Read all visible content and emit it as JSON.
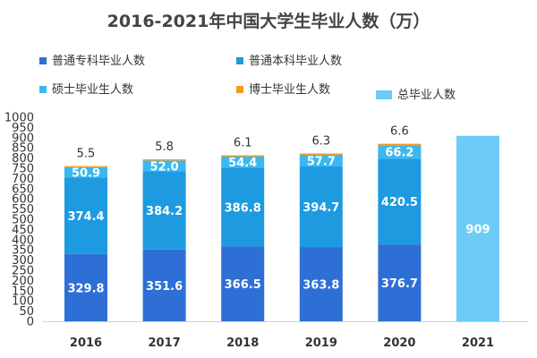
{
  "chart_data": {
    "type": "bar",
    "stacked": true,
    "title": "2016-2021年中国大学生毕业人数（万）",
    "categories": [
      "2016",
      "2017",
      "2018",
      "2019",
      "2020",
      "2021"
    ],
    "ylim": [
      0,
      1000
    ],
    "yticks": [
      0,
      50,
      100,
      150,
      200,
      250,
      300,
      350,
      400,
      450,
      500,
      550,
      600,
      650,
      700,
      750,
      800,
      850,
      900,
      950,
      1000
    ],
    "grid": false,
    "series": [
      {
        "name": "普通专科毕业人数",
        "color": "#2e6fd6",
        "values": [
          329.8,
          351.6,
          366.5,
          363.8,
          376.7,
          null
        ]
      },
      {
        "name": "普通本科毕业人数",
        "color": "#1d9ae0",
        "values": [
          374.4,
          384.2,
          386.8,
          394.7,
          420.5,
          null
        ]
      },
      {
        "name": "硕士毕业生人数",
        "color": "#3bb8f0",
        "values": [
          50.9,
          52.0,
          54.4,
          57.7,
          66.2,
          null
        ]
      },
      {
        "name": "博士毕业生人数",
        "color": "#f59a1b",
        "values": [
          5.5,
          5.8,
          6.1,
          6.3,
          6.6,
          null
        ]
      },
      {
        "name": "总毕业人数",
        "color": "#6cccf7",
        "values": [
          null,
          null,
          null,
          null,
          null,
          909
        ]
      }
    ],
    "segment_labels": [
      [
        "329.8",
        "351.6",
        "366.5",
        "363.8",
        "376.7",
        ""
      ],
      [
        "374.4",
        "384.2",
        "386.8",
        "394.7",
        "420.5",
        ""
      ],
      [
        "50.9",
        "52.0",
        "54.4",
        "57.7",
        "66.2",
        ""
      ],
      [
        "5.5",
        "5.8",
        "6.1",
        "6.3",
        "6.6",
        ""
      ],
      [
        "",
        "",
        "",
        "",
        "",
        "909"
      ]
    ],
    "legend_labels": [
      "普通专科毕业人数",
      "普通本科毕业人数",
      "硕士毕业生人数",
      "博士毕业生人数",
      "总毕业人数"
    ],
    "legend_position": "top"
  }
}
